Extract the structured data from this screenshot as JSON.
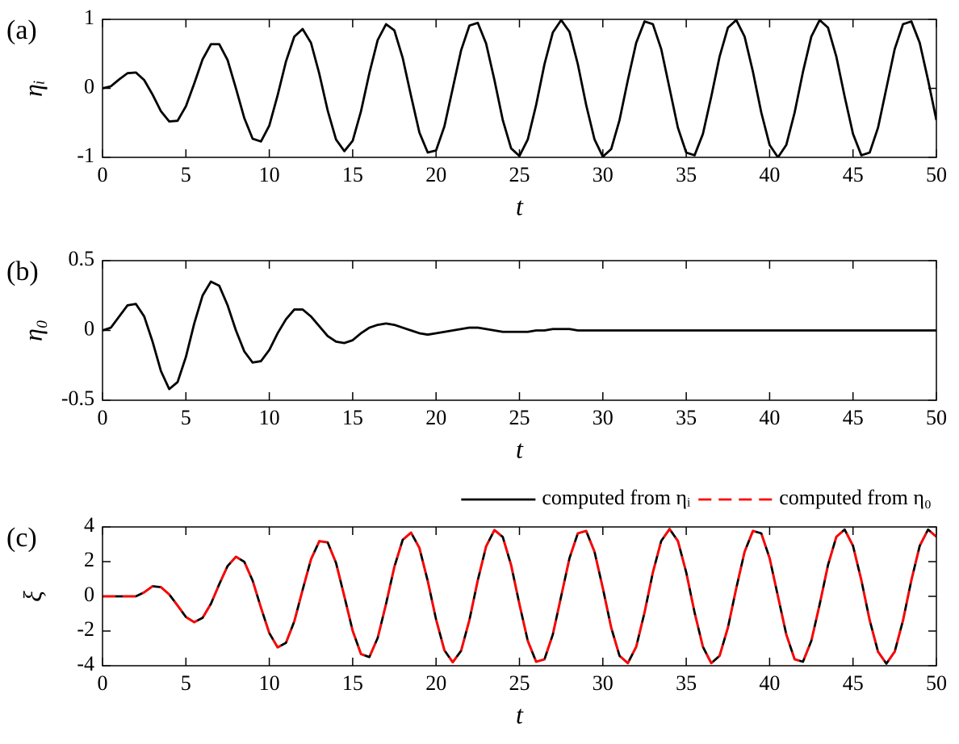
{
  "chart_data": [
    {
      "type": "line",
      "panel_label": "(a)",
      "xlabel": "t",
      "ylabel": "ηᵢ",
      "x": [
        0,
        0.5,
        1,
        1.5,
        2,
        2.5,
        3,
        3.5,
        4,
        4.5,
        5,
        5.5,
        6,
        6.5,
        7,
        7.5,
        8,
        8.5,
        9,
        9.5,
        10,
        10.5,
        11,
        11.5,
        12,
        12.5,
        13,
        13.5,
        14,
        14.5,
        15,
        15.5,
        16,
        16.5,
        17,
        17.5,
        18,
        18.5,
        19,
        19.5,
        20,
        20.5,
        21,
        21.5,
        22,
        22.5,
        23,
        23.5,
        24,
        24.5,
        25,
        25.5,
        26,
        26.5,
        27,
        27.5,
        28,
        28.5,
        29,
        29.5,
        30,
        30.5,
        31,
        31.5,
        32,
        32.5,
        33,
        33.5,
        34,
        34.5,
        35,
        35.5,
        36,
        36.5,
        37,
        37.5,
        38,
        38.5,
        39,
        39.5,
        40,
        40.5,
        41,
        41.5,
        42,
        42.5,
        43,
        43.5,
        44,
        44.5,
        45,
        45.5,
        46,
        46.5,
        47,
        47.5,
        48,
        48.5,
        49,
        49.5,
        50
      ],
      "series": [
        {
          "color": "#000000",
          "style": "solid",
          "values": [
            0,
            0.03,
            0.13,
            0.22,
            0.23,
            0.12,
            -0.09,
            -0.33,
            -0.48,
            -0.47,
            -0.26,
            0.07,
            0.42,
            0.64,
            0.64,
            0.41,
            0,
            -0.43,
            -0.73,
            -0.77,
            -0.54,
            -0.1,
            0.39,
            0.75,
            0.86,
            0.66,
            0.21,
            -0.32,
            -0.74,
            -0.91,
            -0.76,
            -0.33,
            0.22,
            0.7,
            0.93,
            0.84,
            0.44,
            -0.11,
            -0.64,
            -0.93,
            -0.9,
            -0.55,
            0,
            0.55,
            0.91,
            0.95,
            0.65,
            0.12,
            -0.46,
            -0.87,
            -0.98,
            -0.74,
            -0.24,
            0.35,
            0.81,
            0.99,
            0.82,
            0.35,
            -0.24,
            -0.74,
            -0.99,
            -0.88,
            -0.46,
            0.12,
            0.66,
            0.97,
            0.93,
            0.57,
            0,
            -0.57,
            -0.93,
            -0.97,
            -0.66,
            -0.12,
            0.46,
            0.88,
            0.99,
            0.75,
            0.24,
            -0.35,
            -0.82,
            -1,
            -0.82,
            -0.35,
            0.24,
            0.75,
            0.99,
            0.88,
            0.46,
            -0.12,
            -0.66,
            -0.97,
            -0.93,
            -0.57,
            0,
            0.57,
            0.93,
            0.97,
            0.66,
            0.12,
            -0.46
          ]
        }
      ],
      "xlim": [
        0,
        50
      ],
      "xticks": [
        0,
        5,
        10,
        15,
        20,
        25,
        30,
        35,
        40,
        45,
        50
      ],
      "ylim": [
        -1,
        1
      ],
      "yticks": [
        -1,
        0,
        1
      ]
    },
    {
      "type": "line",
      "panel_label": "(b)",
      "xlabel": "t",
      "ylabel": "η₀",
      "x": [
        0,
        0.5,
        1,
        1.5,
        2,
        2.5,
        3,
        3.5,
        4,
        4.5,
        5,
        5.5,
        6,
        6.5,
        7,
        7.5,
        8,
        8.5,
        9,
        9.5,
        10,
        10.5,
        11,
        11.5,
        12,
        12.5,
        13,
        13.5,
        14,
        14.5,
        15,
        15.5,
        16,
        16.5,
        17,
        17.5,
        18,
        18.5,
        19,
        19.5,
        20,
        20.5,
        21,
        21.5,
        22,
        22.5,
        23,
        23.5,
        24,
        24.5,
        25,
        25.5,
        26,
        26.5,
        27,
        27.5,
        28,
        28.5,
        29,
        29.5,
        30,
        30.5,
        31,
        31.5,
        32,
        32.5,
        33,
        33.5,
        34,
        34.5,
        35,
        35.5,
        36,
        36.5,
        37,
        37.5,
        38,
        38.5,
        39,
        39.5,
        40,
        40.5,
        41,
        41.5,
        42,
        42.5,
        43,
        43.5,
        44,
        44.5,
        45,
        45.5,
        46,
        46.5,
        47,
        47.5,
        48,
        48.5,
        49,
        49.5,
        50
      ],
      "series": [
        {
          "color": "#000000",
          "style": "solid",
          "values": [
            0,
            0.02,
            0.1,
            0.18,
            0.19,
            0.1,
            -0.08,
            -0.29,
            -0.42,
            -0.37,
            -0.19,
            0.05,
            0.25,
            0.35,
            0.32,
            0.18,
            0,
            -0.15,
            -0.23,
            -0.22,
            -0.14,
            -0.02,
            0.08,
            0.15,
            0.15,
            0.1,
            0.03,
            -0.04,
            -0.08,
            -0.09,
            -0.07,
            -0.02,
            0.02,
            0.04,
            0.05,
            0.04,
            0.02,
            0,
            -0.02,
            -0.03,
            -0.02,
            -0.01,
            0,
            0.01,
            0.02,
            0.02,
            0.01,
            0,
            -0.01,
            -0.01,
            -0.01,
            -0.01,
            0,
            0,
            0.01,
            0.01,
            0.01,
            0,
            0,
            0,
            0,
            0,
            0,
            0,
            0,
            0,
            0,
            0,
            0,
            0,
            0,
            0,
            0,
            0,
            0,
            0,
            0,
            0,
            0,
            0,
            0,
            0,
            0,
            0,
            0,
            0,
            0,
            0,
            0,
            0,
            0,
            0,
            0,
            0,
            0,
            0,
            0,
            0,
            0,
            0,
            0
          ]
        }
      ],
      "xlim": [
        0,
        50
      ],
      "xticks": [
        0,
        5,
        10,
        15,
        20,
        25,
        30,
        35,
        40,
        45,
        50
      ],
      "ylim": [
        -0.5,
        0.5
      ],
      "yticks": [
        -0.5,
        0,
        0.5
      ]
    },
    {
      "type": "line",
      "panel_label": "(c)",
      "xlabel": "t",
      "ylabel": "ξ",
      "legend": "top",
      "x": [
        0,
        0.5,
        1,
        1.5,
        2,
        2.5,
        3,
        3.5,
        4,
        4.5,
        5,
        5.5,
        6,
        6.5,
        7,
        7.5,
        8,
        8.5,
        9,
        9.5,
        10,
        10.5,
        11,
        11.5,
        12,
        12.5,
        13,
        13.5,
        14,
        14.5,
        15,
        15.5,
        16,
        16.5,
        17,
        17.5,
        18,
        18.5,
        19,
        19.5,
        20,
        20.5,
        21,
        21.5,
        22,
        22.5,
        23,
        23.5,
        24,
        24.5,
        25,
        25.5,
        26,
        26.5,
        27,
        27.5,
        28,
        28.5,
        29,
        29.5,
        30,
        30.5,
        31,
        31.5,
        32,
        32.5,
        33,
        33.5,
        34,
        34.5,
        35,
        35.5,
        36,
        36.5,
        37,
        37.5,
        38,
        38.5,
        39,
        39.5,
        40,
        40.5,
        41,
        41.5,
        42,
        42.5,
        43,
        43.5,
        44,
        44.5,
        45,
        45.5,
        46,
        46.5,
        47,
        47.5,
        48,
        48.5,
        49,
        49.5,
        50
      ],
      "series": [
        {
          "name": "computed from ηᵢ",
          "color": "#000000",
          "style": "solid",
          "values": [
            0,
            0,
            0,
            0,
            0,
            0.23,
            0.58,
            0.53,
            0.11,
            -0.53,
            -1.19,
            -1.49,
            -1.24,
            -0.43,
            0.7,
            1.75,
            2.28,
            1.99,
            0.91,
            -0.65,
            -2.12,
            -2.94,
            -2.68,
            -1.44,
            0.38,
            2.13,
            3.18,
            3.11,
            1.93,
            0,
            -1.99,
            -3.33,
            -3.5,
            -2.4,
            -0.44,
            1.7,
            3.26,
            3.67,
            2.79,
            0.89,
            -1.33,
            -3.11,
            -3.8,
            -3.14,
            -1.36,
            0.92,
            2.88,
            3.82,
            3.42,
            1.8,
            -0.46,
            -2.57,
            -3.77,
            -3.63,
            -2.2,
            0,
            2.2,
            3.63,
            3.77,
            2.57,
            0.47,
            -1.8,
            -3.43,
            -3.85,
            -2.91,
            -0.93,
            1.38,
            3.19,
            3.88,
            3.19,
            1.38,
            -0.93,
            -2.91,
            -3.85,
            -3.43,
            -1.8,
            0.47,
            2.57,
            3.77,
            3.63,
            2.2,
            0,
            -2.2,
            -3.63,
            -3.77,
            -2.57,
            -0.47,
            1.8,
            3.43,
            3.85,
            2.91,
            0.93,
            -1.38,
            -3.19,
            -3.88,
            -3.19,
            -1.38,
            0.93,
            2.91,
            3.85,
            3.43
          ]
        },
        {
          "name": "computed from η₀",
          "color": "#ff0000",
          "style": "dashed",
          "values": [
            0,
            0,
            0,
            0,
            0,
            0.23,
            0.58,
            0.53,
            0.11,
            -0.53,
            -1.19,
            -1.49,
            -1.24,
            -0.43,
            0.7,
            1.75,
            2.28,
            1.99,
            0.91,
            -0.65,
            -2.12,
            -2.94,
            -2.68,
            -1.44,
            0.38,
            2.13,
            3.18,
            3.11,
            1.93,
            0,
            -1.99,
            -3.33,
            -3.5,
            -2.4,
            -0.44,
            1.7,
            3.26,
            3.67,
            2.79,
            0.89,
            -1.33,
            -3.11,
            -3.8,
            -3.14,
            -1.36,
            0.92,
            2.88,
            3.82,
            3.42,
            1.8,
            -0.46,
            -2.57,
            -3.77,
            -3.63,
            -2.2,
            0,
            2.2,
            3.63,
            3.77,
            2.57,
            0.47,
            -1.8,
            -3.43,
            -3.85,
            -2.91,
            -0.93,
            1.38,
            3.19,
            3.88,
            3.19,
            1.38,
            -0.93,
            -2.91,
            -3.85,
            -3.43,
            -1.8,
            0.47,
            2.57,
            3.77,
            3.63,
            2.2,
            0,
            -2.2,
            -3.63,
            -3.77,
            -2.57,
            -0.47,
            1.8,
            3.43,
            3.85,
            2.91,
            0.93,
            -1.38,
            -3.19,
            -3.88,
            -3.19,
            -1.38,
            0.93,
            2.91,
            3.85,
            3.43
          ]
        }
      ],
      "xlim": [
        0,
        50
      ],
      "xticks": [
        0,
        5,
        10,
        15,
        20,
        25,
        30,
        35,
        40,
        45,
        50
      ],
      "ylim": [
        -4,
        4
      ],
      "yticks": [
        -4,
        -2,
        0,
        2,
        4
      ]
    }
  ]
}
